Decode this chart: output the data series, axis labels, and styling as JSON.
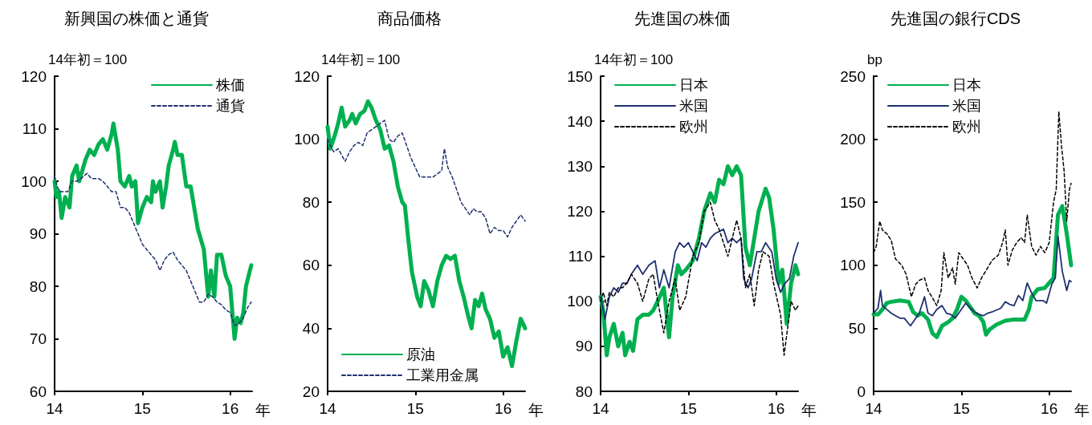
{
  "chart_data": [
    {
      "type": "line",
      "title": "新興国の株価と通貨",
      "ylabel": "14年初＝100",
      "xlabel": "年",
      "xlim": [
        14,
        16.25
      ],
      "xticks": [
        14,
        15,
        16
      ],
      "ylim": [
        60,
        120
      ],
      "yticks": [
        60,
        70,
        80,
        90,
        100,
        110,
        120
      ],
      "grid": false,
      "legend": "top right",
      "marker": "none",
      "series": [
        {
          "name": "株価",
          "color": "#00b050",
          "line_style": "solid",
          "x": [
            14.0,
            14.02,
            14.05,
            14.08,
            14.12,
            14.17,
            14.2,
            14.25,
            14.28,
            14.35,
            14.4,
            14.45,
            14.5,
            14.55,
            14.6,
            14.65,
            14.67,
            14.72,
            14.75,
            14.8,
            14.85,
            14.88,
            14.92,
            14.95,
            15.0,
            15.05,
            15.1,
            15.12,
            15.15,
            15.2,
            15.23,
            15.27,
            15.3,
            15.35,
            15.37,
            15.4,
            15.45,
            15.5,
            15.55,
            15.6,
            15.63,
            15.7,
            15.75,
            15.78,
            15.82,
            15.85,
            15.9,
            15.95,
            16.0,
            16.05,
            16.08,
            16.12,
            16.15,
            16.18,
            16.21,
            16.24
          ],
          "values": [
            100,
            97,
            98,
            93,
            97,
            95,
            101,
            103,
            100,
            104,
            106,
            105,
            107,
            108,
            106,
            109,
            111,
            106,
            100,
            99,
            101,
            99,
            100,
            92,
            95,
            97,
            96,
            100,
            98,
            100,
            95,
            99,
            103,
            106,
            107.5,
            105,
            105,
            99,
            99,
            94,
            91,
            87,
            78,
            83,
            78,
            86,
            86,
            82,
            80,
            70,
            74,
            73,
            75,
            80,
            82,
            84
          ]
        },
        {
          "name": "通貨",
          "color": "#1f3070",
          "line_style": "dashed",
          "x": [
            14.0,
            14.03,
            14.06,
            14.1,
            14.15,
            14.2,
            14.25,
            14.3,
            14.37,
            14.42,
            14.5,
            14.55,
            14.6,
            14.65,
            14.7,
            14.75,
            14.8,
            14.85,
            14.9,
            14.95,
            15.0,
            15.05,
            15.1,
            15.15,
            15.2,
            15.25,
            15.3,
            15.35,
            15.4,
            15.45,
            15.5,
            15.55,
            15.6,
            15.65,
            15.7,
            15.75,
            15.8,
            15.85,
            15.9,
            15.95,
            16.0,
            16.05,
            16.1,
            16.15,
            16.2,
            16.24
          ],
          "values": [
            101,
            99,
            98,
            98,
            98,
            100,
            100,
            100.5,
            101.5,
            100.5,
            100.5,
            100,
            99,
            98,
            98,
            95,
            95,
            94,
            92,
            90,
            88,
            87,
            86,
            85,
            83,
            85,
            86,
            86.5,
            85,
            84,
            83,
            81,
            79,
            77,
            77,
            78.5,
            78,
            77,
            76.5,
            75.5,
            75,
            72.5,
            73,
            74,
            76,
            77
          ]
        }
      ]
    },
    {
      "type": "line",
      "title": "商品価格",
      "ylabel": "14年初＝100",
      "xlabel": "年",
      "xlim": [
        14,
        16.25
      ],
      "xticks": [
        14,
        15,
        16
      ],
      "ylim": [
        20,
        120
      ],
      "yticks": [
        20,
        40,
        60,
        80,
        100,
        120
      ],
      "grid": false,
      "legend": "bottom left",
      "marker": "none",
      "series": [
        {
          "name": "原油",
          "color": "#00b050",
          "line_style": "solid",
          "x": [
            14.0,
            14.03,
            14.08,
            14.12,
            14.16,
            14.2,
            14.25,
            14.28,
            14.32,
            14.37,
            14.42,
            14.46,
            14.5,
            14.55,
            14.6,
            14.65,
            14.7,
            14.75,
            14.8,
            14.85,
            14.88,
            14.92,
            14.96,
            15.02,
            15.06,
            15.1,
            15.15,
            15.2,
            15.25,
            15.3,
            15.35,
            15.4,
            15.45,
            15.5,
            15.55,
            15.6,
            15.64,
            15.68,
            15.72,
            15.76,
            15.8,
            15.85,
            15.9,
            15.95,
            16.0,
            16.05,
            16.1,
            16.15,
            16.2,
            16.25
          ],
          "values": [
            104,
            97,
            101,
            105,
            110,
            104,
            106,
            108,
            105,
            108,
            109,
            112,
            110,
            106,
            103,
            97,
            98,
            93,
            85,
            80,
            79,
            68,
            58,
            50,
            47,
            55,
            52,
            47,
            55,
            60,
            63,
            62,
            63,
            55,
            50,
            44,
            40,
            49,
            47,
            51,
            46,
            43,
            37,
            39,
            31,
            34,
            28,
            36,
            43,
            40
          ]
        },
        {
          "name": "工業用金属",
          "color": "#1f3070",
          "line_style": "dashed",
          "x": [
            14.0,
            14.03,
            14.07,
            14.12,
            14.2,
            14.25,
            14.3,
            14.35,
            14.4,
            14.45,
            14.5,
            14.55,
            14.6,
            14.65,
            14.7,
            14.75,
            14.8,
            14.85,
            14.9,
            14.95,
            15.0,
            15.05,
            15.1,
            15.15,
            15.2,
            15.25,
            15.3,
            15.33,
            15.37,
            15.42,
            15.47,
            15.52,
            15.57,
            15.62,
            15.66,
            15.7,
            15.75,
            15.8,
            15.85,
            15.9,
            15.95,
            16.0,
            16.05,
            16.1,
            16.15,
            16.2,
            16.25
          ],
          "values": [
            100,
            98,
            96,
            97,
            93,
            96,
            98,
            99,
            98,
            102,
            103,
            104,
            105,
            106,
            100,
            99,
            101,
            102,
            98,
            94,
            91,
            88,
            88,
            88,
            88,
            89,
            90,
            97,
            91,
            88,
            84,
            80,
            78,
            76,
            78,
            77,
            77,
            75,
            70,
            72,
            71,
            71,
            69,
            72,
            74,
            76,
            74
          ]
        }
      ]
    },
    {
      "type": "line",
      "title": "先進国の株価",
      "ylabel": "14年初＝100",
      "xlabel": "年",
      "xlim": [
        14,
        16.25
      ],
      "xticks": [
        14,
        15,
        16
      ],
      "ylim": [
        80,
        150
      ],
      "yticks": [
        80,
        90,
        100,
        110,
        120,
        130,
        140,
        150
      ],
      "grid": false,
      "legend": "top left",
      "marker": "none",
      "series": [
        {
          "name": "日本",
          "color": "#00b050",
          "line_style": "solid",
          "x": [
            14.0,
            14.03,
            14.07,
            14.1,
            14.15,
            14.2,
            14.25,
            14.28,
            14.33,
            14.37,
            14.42,
            14.48,
            14.55,
            14.6,
            14.65,
            14.72,
            14.78,
            14.82,
            14.88,
            14.92,
            14.97,
            15.05,
            15.12,
            15.18,
            15.25,
            15.3,
            15.35,
            15.4,
            15.45,
            15.5,
            15.55,
            15.6,
            15.65,
            15.7,
            15.75,
            15.8,
            15.88,
            15.92,
            15.97,
            16.03,
            16.07,
            16.12,
            16.17,
            16.22,
            16.25
          ],
          "values": [
            101,
            98,
            88,
            92,
            95,
            90,
            93,
            88,
            91,
            89,
            96,
            97,
            97,
            98,
            100,
            103,
            92,
            101,
            108,
            106,
            107,
            109,
            114,
            120,
            124,
            122,
            127,
            126,
            130,
            128,
            130,
            128,
            112,
            108,
            114,
            120,
            125,
            123,
            116,
            104,
            107,
            95,
            104,
            108,
            106
          ]
        },
        {
          "name": "米国",
          "color": "#1f3070",
          "line_style": "solid",
          "x": [
            14.0,
            14.05,
            14.1,
            14.15,
            14.2,
            14.25,
            14.3,
            14.35,
            14.42,
            14.48,
            14.55,
            14.62,
            14.67,
            14.72,
            14.78,
            14.85,
            14.9,
            14.95,
            15.0,
            15.05,
            15.1,
            15.15,
            15.2,
            15.25,
            15.3,
            15.4,
            15.45,
            15.5,
            15.55,
            15.6,
            15.63,
            15.68,
            15.72,
            15.78,
            15.83,
            15.88,
            15.95,
            16.0,
            16.05,
            16.1,
            16.15,
            16.2,
            16.25
          ],
          "values": [
            101,
            96,
            101,
            103,
            102,
            104,
            104,
            106,
            108,
            106,
            108,
            109,
            103,
            107,
            103,
            111,
            113,
            112,
            113,
            111,
            109,
            113,
            112,
            114,
            115,
            116,
            113,
            114,
            113,
            114,
            105,
            103,
            105,
            111,
            111,
            113,
            111,
            105,
            102,
            104,
            105,
            110,
            113
          ]
        },
        {
          "name": "欧州",
          "color": "#000000",
          "line_style": "dashed",
          "x": [
            14.0,
            14.03,
            14.07,
            14.1,
            14.15,
            14.2,
            14.25,
            14.3,
            14.35,
            14.42,
            14.48,
            14.55,
            14.6,
            14.65,
            14.72,
            14.78,
            14.85,
            14.9,
            14.97,
            15.05,
            15.12,
            15.18,
            15.25,
            15.3,
            15.35,
            15.4,
            15.45,
            15.5,
            15.55,
            15.6,
            15.65,
            15.7,
            15.75,
            15.8,
            15.85,
            15.92,
            15.97,
            16.05,
            16.09,
            16.13,
            16.17,
            16.22,
            16.25
          ],
          "values": [
            100,
            102,
            99,
            102,
            101,
            103,
            103,
            104,
            106,
            104,
            100,
            105,
            106,
            100,
            93,
            100,
            105,
            98,
            101,
            110,
            113,
            120,
            122,
            118,
            116,
            113,
            110,
            114,
            118,
            114,
            103,
            106,
            99,
            107,
            111,
            110,
            104,
            97,
            88,
            94,
            100,
            98,
            99
          ]
        }
      ]
    },
    {
      "type": "line",
      "title": "先進国の銀行CDS",
      "ylabel": "bp",
      "xlabel": "年",
      "xlim": [
        14,
        16.25
      ],
      "xticks": [
        14,
        15,
        16
      ],
      "ylim": [
        0,
        250
      ],
      "yticks": [
        0,
        50,
        100,
        150,
        200,
        250
      ],
      "grid": false,
      "legend": "top left",
      "marker": "none",
      "series": [
        {
          "name": "日本",
          "color": "#00b050",
          "line_style": "solid",
          "x": [
            14.0,
            14.05,
            14.1,
            14.15,
            14.2,
            14.3,
            14.4,
            14.45,
            14.5,
            14.55,
            14.62,
            14.67,
            14.72,
            14.78,
            14.85,
            14.9,
            14.95,
            15.0,
            15.05,
            15.1,
            15.15,
            15.2,
            15.25,
            15.28,
            15.32,
            15.4,
            15.5,
            15.6,
            15.72,
            15.77,
            15.8,
            15.87,
            15.95,
            16.05,
            16.1,
            16.15,
            16.2,
            16.25
          ],
          "values": [
            61,
            61,
            65,
            70,
            71,
            72,
            71,
            63,
            60,
            62,
            57,
            46,
            43,
            52,
            55,
            58,
            65,
            75,
            72,
            67,
            62,
            60,
            55,
            45,
            49,
            53,
            56,
            57,
            57,
            65,
            75,
            81,
            82,
            90,
            140,
            147,
            125,
            100
          ]
        },
        {
          "name": "米国",
          "color": "#1f3070",
          "line_style": "solid",
          "x": [
            14.0,
            14.05,
            14.08,
            14.1,
            14.15,
            14.2,
            14.25,
            14.3,
            14.35,
            14.42,
            14.47,
            14.52,
            14.58,
            14.62,
            14.67,
            14.72,
            14.78,
            14.83,
            14.88,
            14.93,
            15.0,
            15.05,
            15.1,
            15.15,
            15.2,
            15.25,
            15.3,
            15.35,
            15.45,
            15.5,
            15.55,
            15.6,
            15.65,
            15.7,
            15.75,
            15.8,
            15.85,
            15.93,
            15.97,
            16.03,
            16.07,
            16.1,
            16.15,
            16.2,
            16.23,
            16.25
          ],
          "values": [
            62,
            66,
            80,
            68,
            65,
            62,
            60,
            58,
            58,
            52,
            57,
            62,
            75,
            62,
            60,
            65,
            68,
            62,
            61,
            58,
            65,
            70,
            66,
            63,
            61,
            60,
            62,
            63,
            66,
            71,
            69,
            68,
            76,
            72,
            86,
            78,
            72,
            72,
            70,
            85,
            90,
            123,
            95,
            80,
            88,
            87
          ]
        },
        {
          "name": "欧州",
          "color": "#000000",
          "line_style": "dashed",
          "x": [
            14.0,
            14.03,
            14.07,
            14.1,
            14.15,
            14.2,
            14.25,
            14.32,
            14.37,
            14.43,
            14.48,
            14.52,
            14.58,
            14.62,
            14.68,
            14.72,
            14.77,
            14.8,
            14.85,
            14.9,
            14.93,
            14.97,
            15.02,
            15.07,
            15.12,
            15.18,
            15.23,
            15.3,
            15.35,
            15.42,
            15.47,
            15.5,
            15.53,
            15.58,
            15.63,
            15.68,
            15.72,
            15.75,
            15.8,
            15.85,
            15.9,
            15.95,
            16.0,
            16.05,
            16.08,
            16.11,
            16.14,
            16.17,
            16.2,
            16.23,
            16.25
          ],
          "values": [
            110,
            115,
            135,
            128,
            125,
            120,
            105,
            100,
            93,
            75,
            85,
            88,
            90,
            80,
            73,
            68,
            80,
            110,
            90,
            98,
            85,
            110,
            105,
            100,
            90,
            82,
            90,
            98,
            104,
            108,
            118,
            128,
            100,
            112,
            118,
            122,
            118,
            140,
            115,
            108,
            115,
            110,
            118,
            150,
            160,
            222,
            195,
            175,
            135,
            160,
            165
          ]
        }
      ]
    }
  ]
}
